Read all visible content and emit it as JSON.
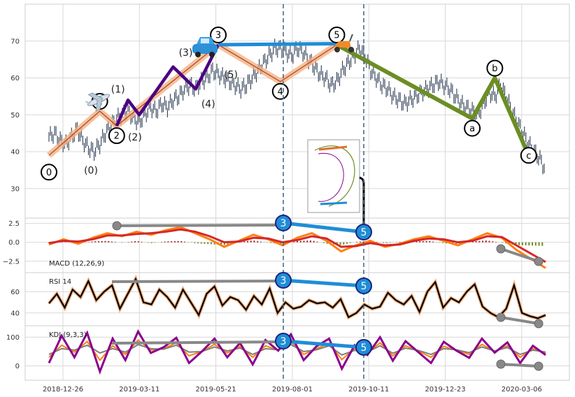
{
  "chart_data": [
    {
      "panel": "price",
      "type": "line",
      "x_tick_labels": [
        "2018-12-26",
        "2019-03-11",
        "2019-05-21",
        "2019-08-01",
        "2019-10-11",
        "2019-12-23",
        "2020-03-06"
      ],
      "y_ticks": [
        30,
        40,
        50,
        60,
        70
      ],
      "ylim": [
        22,
        80
      ],
      "grid": true,
      "series": [
        {
          "role": "close-bars",
          "values": [
            44,
            45,
            43,
            42,
            44,
            46,
            43,
            41,
            40,
            42,
            45,
            47,
            49,
            50,
            51,
            49,
            48,
            50,
            52,
            51,
            53,
            52,
            54,
            55,
            57,
            58,
            57,
            59,
            60,
            62,
            61,
            60,
            59,
            58,
            57,
            58,
            60,
            62,
            64,
            66,
            68,
            68,
            67,
            66,
            68,
            67,
            65,
            63,
            61,
            60,
            58,
            59,
            62,
            64,
            66,
            68,
            66,
            62,
            60,
            58,
            57,
            55,
            54,
            53,
            54,
            55,
            56,
            57,
            58,
            59,
            58,
            57,
            55,
            53,
            52,
            51,
            50,
            53,
            56,
            55,
            58,
            55,
            51,
            48,
            45,
            42,
            40,
            38,
            35
          ]
        }
      ],
      "wave_points": [
        {
          "label": "0",
          "x": 0,
          "y": 39
        },
        {
          "label": "1",
          "x": 9,
          "y": 51
        },
        {
          "label": "2",
          "x": 12,
          "y": 47
        },
        {
          "label": "3",
          "x": 30,
          "y": 69
        },
        {
          "label": "4",
          "x": 41,
          "y": 59
        },
        {
          "label": "5",
          "x": 51,
          "y": 69
        },
        {
          "label": "a",
          "x": 75,
          "y": 49
        },
        {
          "label": "b",
          "x": 79,
          "y": 60
        },
        {
          "label": "c",
          "x": 85,
          "y": 39
        }
      ],
      "sub_wave_labels": [
        "(0)",
        "(1)",
        "(2)",
        "(3)",
        "(4)",
        "(5)"
      ],
      "marker_labels": [
        "1",
        "5"
      ]
    },
    {
      "panel": "macd",
      "type": "line",
      "title": "MACD (12,26,9)",
      "y_ticks": [
        2.5,
        0.0,
        -2.5
      ],
      "y_tick_labels": [
        "2.5",
        "0.0",
        "−2.5"
      ],
      "ylim": [
        -4.0,
        3.2
      ],
      "series": [
        {
          "role": "macd",
          "color": "#ff7f0e",
          "values": [
            -0.3,
            0.4,
            -0.2,
            0.6,
            1.2,
            0.8,
            1.4,
            1.0,
            1.6,
            2.0,
            1.2,
            0.4,
            -0.6,
            0.2,
            1.0,
            0.4,
            -0.4,
            0.6,
            1.2,
            0.2,
            -1.2,
            -0.4,
            0.2,
            -0.6,
            -0.2,
            0.4,
            0.8,
            0.2,
            -0.4,
            0.4,
            1.2,
            0.6,
            -1.0,
            -2.2,
            -3.4
          ]
        },
        {
          "role": "signal",
          "color": "#d62728",
          "values": [
            -0.1,
            0.2,
            0.1,
            0.4,
            0.9,
            0.9,
            1.1,
            1.2,
            1.4,
            1.7,
            1.4,
            0.8,
            0.0,
            0.1,
            0.6,
            0.5,
            0.0,
            0.3,
            0.8,
            0.5,
            -0.6,
            -0.5,
            -0.1,
            -0.4,
            -0.3,
            0.2,
            0.5,
            0.4,
            0.0,
            0.2,
            0.8,
            0.7,
            -0.4,
            -1.5,
            -2.6
          ]
        }
      ],
      "numbered_markers": [
        "3",
        "5"
      ]
    },
    {
      "panel": "rsi",
      "type": "line",
      "title": "RSI 14",
      "y_ticks": [
        40,
        60
      ],
      "ylim": [
        28,
        78
      ],
      "series": [
        {
          "role": "rsi",
          "color": "#000000",
          "values": [
            49,
            58,
            45,
            62,
            55,
            70,
            52,
            60,
            66,
            44,
            58,
            72,
            50,
            48,
            62,
            55,
            45,
            62,
            50,
            38,
            58,
            65,
            47,
            55,
            52,
            43,
            56,
            48,
            63,
            40,
            50,
            44,
            46,
            52,
            49,
            50,
            45,
            53,
            36,
            40,
            48,
            44,
            46,
            59,
            52,
            48,
            56,
            41,
            60,
            69,
            45,
            54,
            50,
            60,
            67,
            46,
            40,
            36,
            44,
            66,
            40,
            37,
            35,
            38
          ]
        }
      ],
      "numbered_markers": [
        "3",
        "5"
      ]
    },
    {
      "panel": "kdj",
      "type": "line",
      "title": "KDJ (9,3,3)",
      "y_ticks": [
        0,
        100
      ],
      "ylim": [
        -50,
        140
      ],
      "series": [
        {
          "role": "k",
          "color": "#ff7f0e",
          "values": [
            30,
            72,
            48,
            85,
            20,
            70,
            40,
            90,
            55,
            60,
            80,
            35,
            50,
            75,
            45,
            68,
            30,
            70,
            55,
            84,
            40,
            60,
            78,
            22,
            60,
            45,
            80,
            35,
            70,
            52,
            30,
            68,
            55,
            40,
            75,
            50,
            70,
            30,
            60,
            45
          ]
        },
        {
          "role": "d",
          "color": "#7f7f7f",
          "values": [
            40,
            60,
            55,
            72,
            45,
            60,
            48,
            74,
            60,
            58,
            72,
            48,
            50,
            66,
            52,
            62,
            40,
            60,
            56,
            74,
            50,
            56,
            70,
            38,
            54,
            48,
            70,
            44,
            62,
            54,
            40,
            60,
            56,
            46,
            66,
            52,
            64,
            40,
            55,
            48
          ]
        },
        {
          "role": "j",
          "color": "#8b008b",
          "values": [
            10,
            105,
            30,
            115,
            -20,
            95,
            20,
            120,
            45,
            65,
            98,
            10,
            50,
            95,
            30,
            80,
            5,
            90,
            53,
            110,
            20,
            68,
            95,
            -10,
            72,
            38,
            100,
            18,
            86,
            48,
            10,
            84,
            53,
            28,
            95,
            46,
            82,
            10,
            70,
            38
          ]
        }
      ],
      "numbered_markers": [
        "3",
        "5"
      ]
    }
  ],
  "icons": [
    "airplane-icon",
    "car-icon",
    "scooter-icon"
  ],
  "colors": {
    "impulse_wave": "#4b0082",
    "corrective_wave": "#6b8e23",
    "highlight": "#1f8dd6",
    "connector": "#888888",
    "vline": "#4a6a86",
    "wave_shadow": "#f4b183"
  }
}
